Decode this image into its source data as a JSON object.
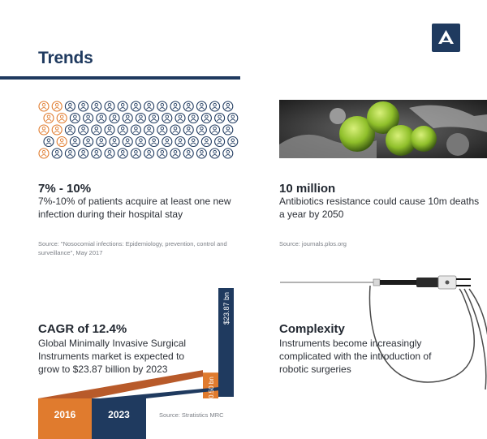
{
  "header": {
    "title": "Trends",
    "logo_icon": "chevron-up-logo"
  },
  "colors": {
    "navy": "#1f3a5f",
    "orange": "#e07b2e",
    "rust": "#b85a2a",
    "gray": "#7b7f86"
  },
  "people_grid": {
    "rows": 5,
    "cols": 15,
    "highlighted_fraction": 0.1
  },
  "stat_infection": {
    "headline": "7% - 10%",
    "body": "7%-10% of patients acquire at least one new infection during their hospital stay",
    "source": "Source: \"Nosocomial infections: Epidemiology, prevention, control and surveillance\", May 2017"
  },
  "stat_resistance": {
    "headline": "10 million",
    "body": "Antibiotics resistance could cause 10m deaths a year by 2050",
    "source": "Source: journals.plos.org"
  },
  "stat_cagr": {
    "headline": "CAGR of 12.4%",
    "body": "Global Minimally Invasive Surgical Instruments market is expected to grow to $23.87 billion by 2023",
    "source": "Source: Stratistics MRC"
  },
  "stat_complexity": {
    "headline": "Complexity",
    "body": "Instruments become increasingly complicated with the introduction of robotic surgeries"
  },
  "chart_data": {
    "type": "bar",
    "categories": [
      "2016",
      "2023"
    ],
    "values": [
      10.5,
      23.87
    ],
    "value_labels": [
      "$10.50 bn",
      "$23.87 bn"
    ],
    "ylim": [
      0,
      23.87
    ]
  }
}
